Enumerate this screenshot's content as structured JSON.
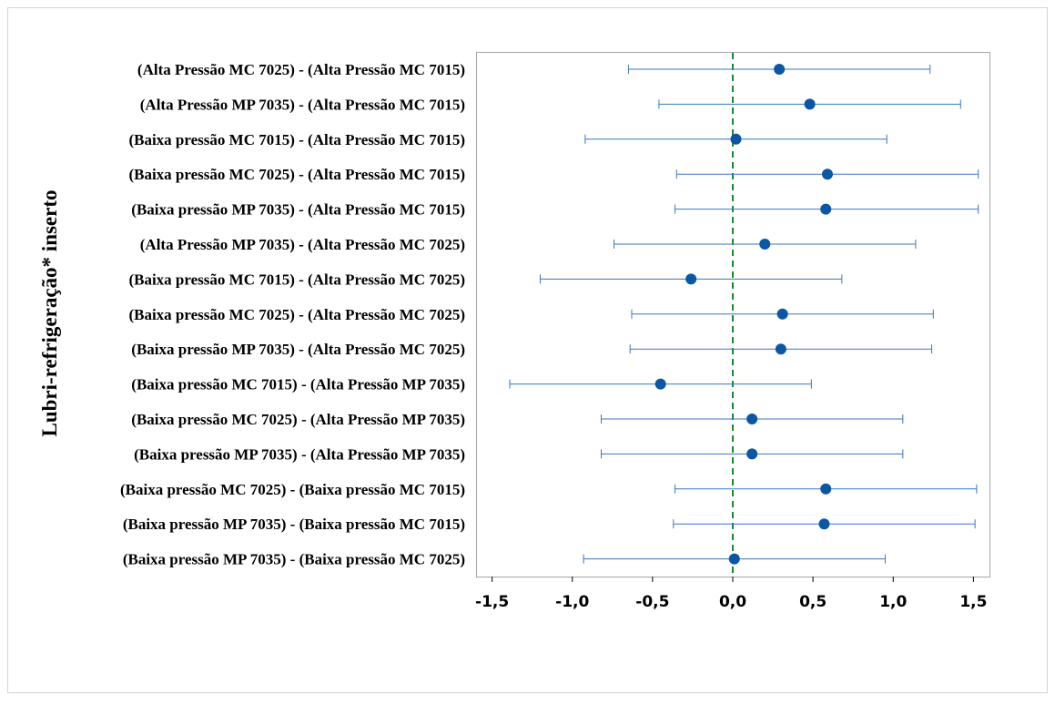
{
  "chart_data": {
    "type": "scatter",
    "subtype": "interval-plot",
    "title": "",
    "xlabel": "",
    "ylabel": "Lubri-refrigeração* inserto",
    "xlim": [
      -1.6,
      1.6
    ],
    "xticks": [
      -1.5,
      -1.0,
      -0.5,
      0.0,
      0.5,
      1.0,
      1.5
    ],
    "xtick_labels": [
      "-1,5",
      "-1,0",
      "-0,5",
      "0,0",
      "0,5",
      "1,0",
      "1,5"
    ],
    "reference_line": 0.0,
    "grid": false,
    "categories": [
      "(Alta Pressão MC 7025) - (Alta Pressão MC 7015)",
      "(Alta Pressão MP 7035) - (Alta Pressão MC 7015)",
      "(Baixa pressão MC 7015) - (Alta Pressão MC 7015)",
      "(Baixa pressão MC 7025) - (Alta Pressão MC 7015)",
      "(Baixa pressão MP 7035) - (Alta Pressão MC 7015)",
      "(Alta Pressão MP 7035) - (Alta Pressão MC 7025)",
      "(Baixa pressão MC 7015) - (Alta Pressão MC 7025)",
      "(Baixa pressão MC 7025) - (Alta Pressão MC 7025)",
      "(Baixa pressão MP 7035) - (Alta Pressão MC 7025)",
      "(Baixa pressão MC 7015) - (Alta Pressão MP 7035)",
      "(Baixa pressão MC 7025) - (Alta Pressão MP 7035)",
      "(Baixa pressão MP 7035) - (Alta Pressão MP 7035)",
      "(Baixa pressão MC 7025) - (Baixa pressão MC 7015)",
      "(Baixa pressão MP 7035) - (Baixa pressão MC 7015)",
      "(Baixa pressão MP 7035) - (Baixa pressão MC 7025)"
    ],
    "values": [
      0.29,
      0.48,
      0.02,
      0.59,
      0.58,
      0.2,
      -0.26,
      0.31,
      0.3,
      -0.45,
      0.12,
      0.12,
      0.58,
      0.57,
      0.01
    ],
    "lower": [
      -0.65,
      -0.46,
      -0.92,
      -0.35,
      -0.36,
      -0.74,
      -1.2,
      -0.63,
      -0.64,
      -1.39,
      -0.82,
      -0.82,
      -0.36,
      -0.37,
      -0.93
    ],
    "upper": [
      1.23,
      1.42,
      0.96,
      1.53,
      1.53,
      1.14,
      0.68,
      1.25,
      1.24,
      0.49,
      1.06,
      1.06,
      1.52,
      1.51,
      0.95
    ],
    "colors": {
      "point": "#0b57a4",
      "interval": "#3a76c0",
      "reference": "#1a8a2e",
      "frame": "#a6a6a6"
    }
  }
}
